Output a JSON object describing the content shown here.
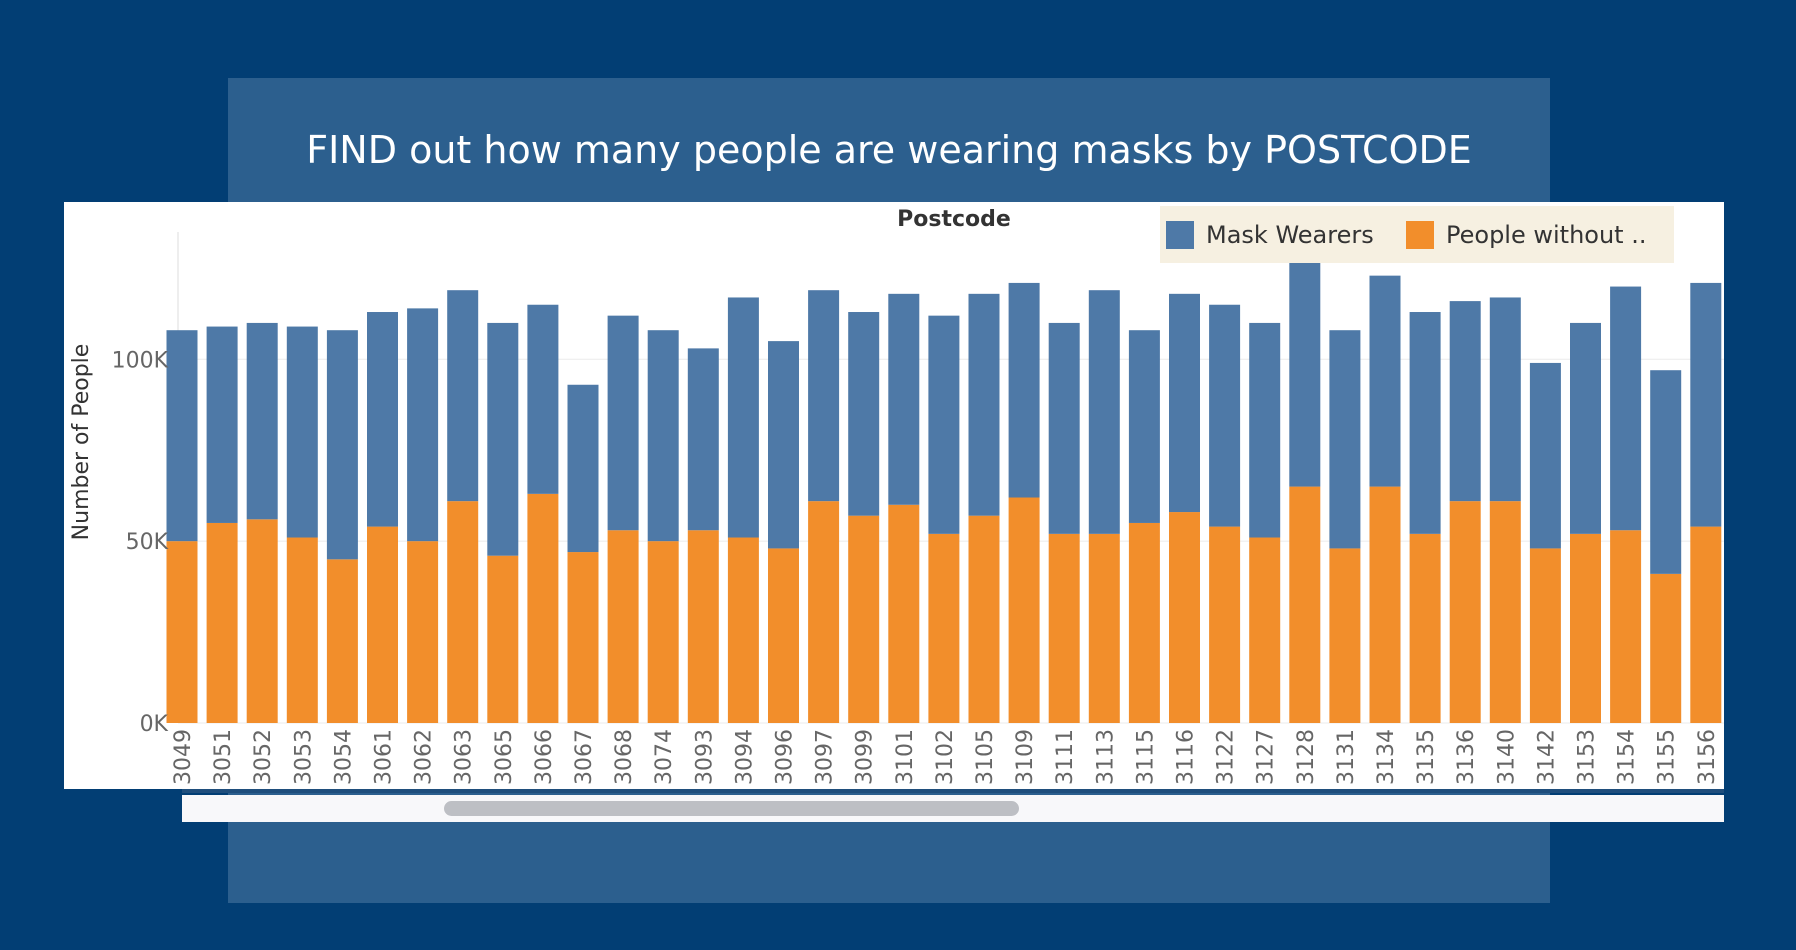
{
  "title": "FIND out how many people are wearing masks by POSTCODE",
  "legend": {
    "items": [
      {
        "label": "Mask Wearers",
        "color": "#4e79a7"
      },
      {
        "label": "People without ..",
        "color": "#f28e2b"
      }
    ]
  },
  "chart_data": {
    "type": "bar",
    "stacked": true,
    "title": "",
    "xlabel": "Postcode",
    "ylabel": "Number of People",
    "ylim": [
      0,
      135000
    ],
    "yticks": [
      0,
      50000,
      100000
    ],
    "ytick_labels": [
      "0K",
      "50K",
      "100K"
    ],
    "grid": true,
    "legend_position": "top-right",
    "categories": [
      "3049",
      "3051",
      "3052",
      "3053",
      "3054",
      "3061",
      "3062",
      "3063",
      "3065",
      "3066",
      "3067",
      "3068",
      "3074",
      "3093",
      "3094",
      "3096",
      "3097",
      "3099",
      "3101",
      "3102",
      "3105",
      "3109",
      "3111",
      "3113",
      "3115",
      "3116",
      "3122",
      "3127",
      "3128",
      "3131",
      "3134",
      "3135",
      "3136",
      "3140",
      "3142",
      "3153",
      "3154",
      "3155",
      "3156"
    ],
    "series": [
      {
        "name": "People without ..",
        "color": "#f28e2b",
        "values": [
          50000,
          55000,
          56000,
          51000,
          45000,
          54000,
          50000,
          61000,
          46000,
          63000,
          47000,
          53000,
          50000,
          53000,
          51000,
          48000,
          61000,
          57000,
          60000,
          52000,
          57000,
          62000,
          52000,
          52000,
          55000,
          58000,
          54000,
          51000,
          65000,
          48000,
          65000,
          52000,
          61000,
          61000,
          48000,
          52000,
          53000,
          41000,
          54000
        ]
      },
      {
        "name": "Mask Wearers",
        "color": "#4e79a7",
        "values": [
          58000,
          54000,
          54000,
          58000,
          63000,
          59000,
          64000,
          58000,
          64000,
          52000,
          46000,
          59000,
          58000,
          50000,
          66000,
          57000,
          58000,
          56000,
          58000,
          60000,
          61000,
          59000,
          58000,
          67000,
          53000,
          60000,
          61000,
          59000,
          65000,
          60000,
          58000,
          61000,
          55000,
          56000,
          51000,
          58000,
          67000,
          56000,
          67000
        ]
      }
    ]
  },
  "scrollbar": {
    "position": 0.17
  }
}
